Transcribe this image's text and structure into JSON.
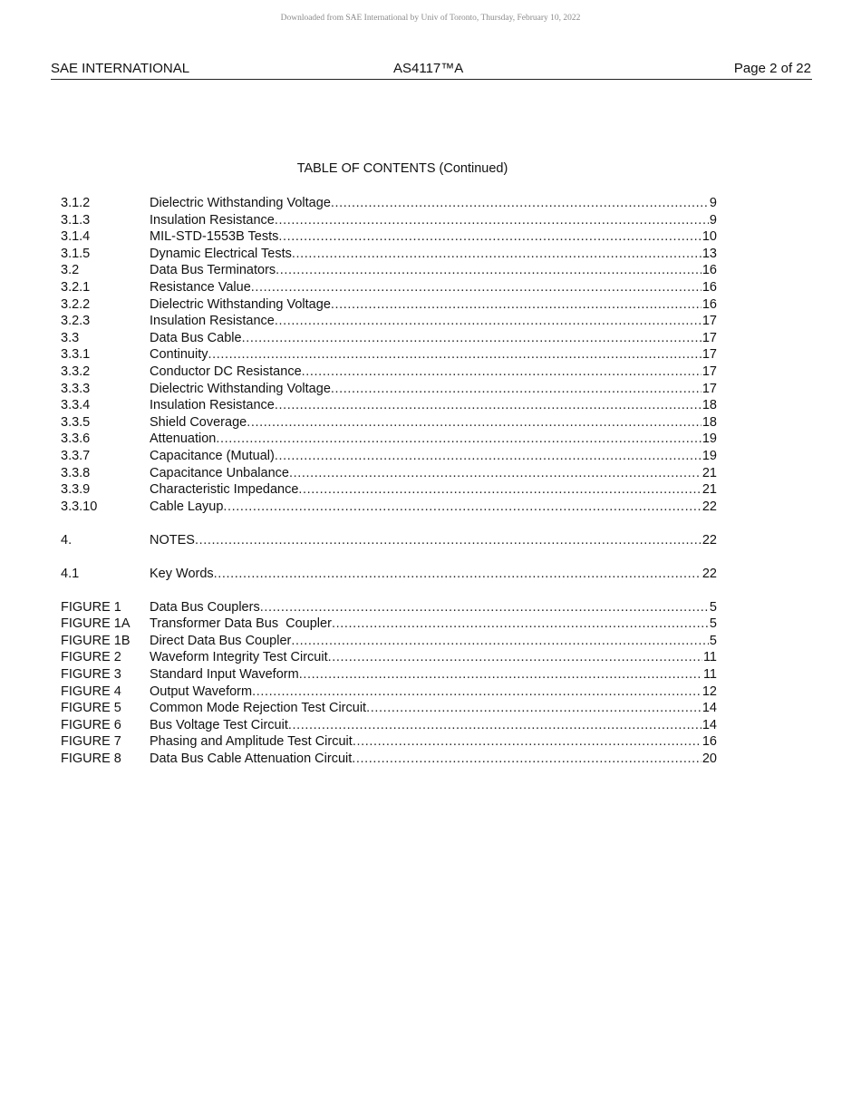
{
  "download_notice": "Downloaded from SAE International by Univ of Toronto, Thursday, February 10, 2022",
  "header": {
    "org": "SAE INTERNATIONAL",
    "doc": "AS4117™A",
    "page": "Page 2 of 22"
  },
  "toc_title": "TABLE OF CONTENTS (Continued)",
  "groups": [
    [
      {
        "num": "3.1.2",
        "title": "Dielectric Withstanding Voltage",
        "page": "9"
      },
      {
        "num": "3.1.3",
        "title": "Insulation Resistance",
        "page": "9"
      },
      {
        "num": "3.1.4",
        "title": "MIL-STD-1553B Tests",
        "page": "10"
      },
      {
        "num": "3.1.5",
        "title": "Dynamic Electrical Tests",
        "page": "13"
      },
      {
        "num": "3.2",
        "title": "Data Bus Terminators",
        "page": "16"
      },
      {
        "num": "3.2.1",
        "title": "Resistance Value",
        "page": "16"
      },
      {
        "num": "3.2.2",
        "title": "Dielectric Withstanding Voltage",
        "page": "16"
      },
      {
        "num": "3.2.3",
        "title": "Insulation Resistance",
        "page": "17"
      },
      {
        "num": "3.3",
        "title": "Data Bus Cable",
        "page": "17"
      },
      {
        "num": "3.3.1",
        "title": "Continuity",
        "page": "17"
      },
      {
        "num": "3.3.2",
        "title": "Conductor DC Resistance",
        "page": "17"
      },
      {
        "num": "3.3.3",
        "title": "Dielectric Withstanding Voltage",
        "page": "17"
      },
      {
        "num": "3.3.4",
        "title": "Insulation Resistance",
        "page": "18"
      },
      {
        "num": "3.3.5",
        "title": "Shield Coverage",
        "page": "18"
      },
      {
        "num": "3.3.6",
        "title": "Attenuation",
        "page": "19"
      },
      {
        "num": "3.3.7",
        "title": "Capacitance (Mutual)",
        "page": "19"
      },
      {
        "num": "3.3.8",
        "title": "Capacitance Unbalance",
        "page": "21"
      },
      {
        "num": "3.3.9",
        "title": "Characteristic Impedance",
        "page": "21"
      },
      {
        "num": "3.3.10",
        "title": "Cable Layup",
        "page": "22"
      }
    ],
    [
      {
        "num": "4.",
        "title": "NOTES",
        "page": "22"
      }
    ],
    [
      {
        "num": "4.1",
        "title": "Key Words",
        "page": "22"
      }
    ],
    [
      {
        "num": "FIGURE 1",
        "title": "Data Bus Couplers",
        "page": "5"
      },
      {
        "num": "FIGURE 1A",
        "title": "Transformer Data Bus  Coupler",
        "page": "5"
      },
      {
        "num": "FIGURE 1B",
        "title": "Direct Data Bus Coupler",
        "page": "5"
      },
      {
        "num": "FIGURE 2",
        "title": "Waveform Integrity Test Circuit",
        "page": "11"
      },
      {
        "num": "FIGURE 3",
        "title": "Standard Input Waveform",
        "page": "11"
      },
      {
        "num": "FIGURE 4",
        "title": "Output Waveform",
        "page": "12"
      },
      {
        "num": "FIGURE 5",
        "title": "Common Mode Rejection Test Circuit",
        "page": "14"
      },
      {
        "num": "FIGURE 6",
        "title": "Bus Voltage Test Circuit",
        "page": "14"
      },
      {
        "num": "FIGURE 7",
        "title": "Phasing and Amplitude Test Circuit",
        "page": "16"
      },
      {
        "num": "FIGURE 8",
        "title": "Data Bus Cable Attenuation Circuit",
        "page": "20"
      }
    ]
  ]
}
